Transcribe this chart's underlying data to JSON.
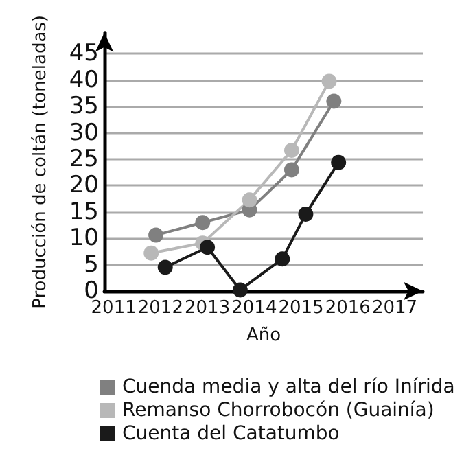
{
  "chart_data": {
    "type": "line",
    "xlabel": "Año",
    "ylabel": "Producción de coltán (toneladas)",
    "xlim": [
      2010.8,
      2017.6
    ],
    "xticks": [
      2011,
      2012,
      2013,
      2014,
      2015,
      2016,
      2017
    ],
    "ylim": [
      0,
      49
    ],
    "yticks": [
      0,
      5,
      10,
      15,
      20,
      25,
      30,
      35,
      40,
      45
    ],
    "series": [
      {
        "name": "Cuenda media y alta del río Inírida",
        "color": "#808080",
        "x": [
          2011.9,
          2012.9,
          2013.9,
          2014.8,
          2015.7
        ],
        "values": [
          10.6,
          13,
          15.4,
          23,
          36
        ]
      },
      {
        "name": "Remanso Chorrobocón (Guainía)",
        "color": "#b8b8b8",
        "x": [
          2011.8,
          2012.9,
          2013.9,
          2014.8,
          2015.6
        ],
        "values": [
          7.2,
          9.1,
          17.3,
          26.7,
          39.8
        ]
      },
      {
        "name": "Cuenta del Catatumbo",
        "color": "#1a1a1a",
        "x": [
          2012.1,
          2013,
          2013.7,
          2014.6,
          2015.1,
          2015.8
        ],
        "values": [
          4.5,
          8.3,
          0.2,
          6.1,
          14.6,
          24.4
        ]
      }
    ],
    "grid": "y",
    "legend": "bottom",
    "marker": "circle",
    "line_style": "solid"
  }
}
